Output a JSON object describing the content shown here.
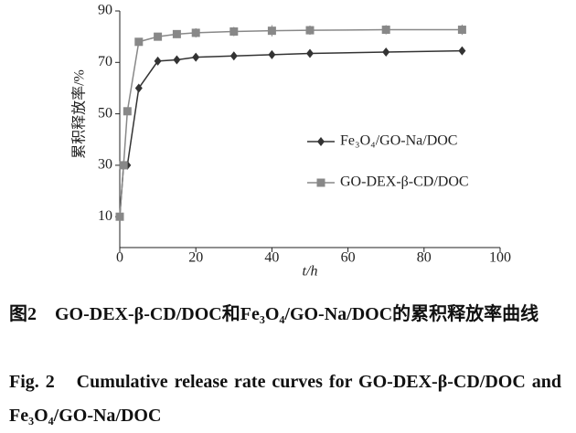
{
  "chart_data": {
    "type": "line",
    "x_label": "t/h",
    "y_label": "累积释放率/%",
    "x": [
      0,
      1,
      2,
      5,
      10,
      15,
      20,
      30,
      40,
      50,
      70,
      90
    ],
    "series": [
      {
        "name": "Fe₃O₄/GO-Na/DOC",
        "color": "#333333",
        "marker": "diamond",
        "values": [
          10,
          30,
          30,
          60,
          70.5,
          71,
          72,
          72.5,
          73,
          73.5,
          74,
          74.5
        ],
        "errors": [
          0.8,
          0.8,
          0.8,
          1.2,
          1,
          1.2,
          1.5,
          1.2,
          1.2,
          1.2,
          1.2,
          1.2
        ]
      },
      {
        "name": "GO-DEX-β-CD/DOC",
        "color": "#888888",
        "marker": "square",
        "values": [
          10,
          30,
          51,
          78,
          80,
          81,
          81.5,
          82,
          82.3,
          82.5,
          82.7,
          82.7
        ],
        "errors": [
          0.8,
          0.8,
          0.8,
          1,
          1.2,
          1.5,
          1.8,
          1.8,
          2.2,
          1.8,
          1.8,
          2
        ]
      }
    ],
    "xlim": [
      0,
      100
    ],
    "xticks": [
      0,
      20,
      40,
      60,
      80,
      100
    ],
    "ylim": [
      -2,
      90
    ],
    "yticks": [
      10,
      30,
      50,
      70,
      90
    ]
  },
  "caption": {
    "zh": "图2　GO-DEX-β-CD/DOC和Fe₃O₄/GO-Na/DOC的累积释放率曲线",
    "en": "Fig. 2　Cumulative release rate curves for GO-DEX-β-CD/DOC and Fe₃O₄/GO-Na/DOC"
  }
}
